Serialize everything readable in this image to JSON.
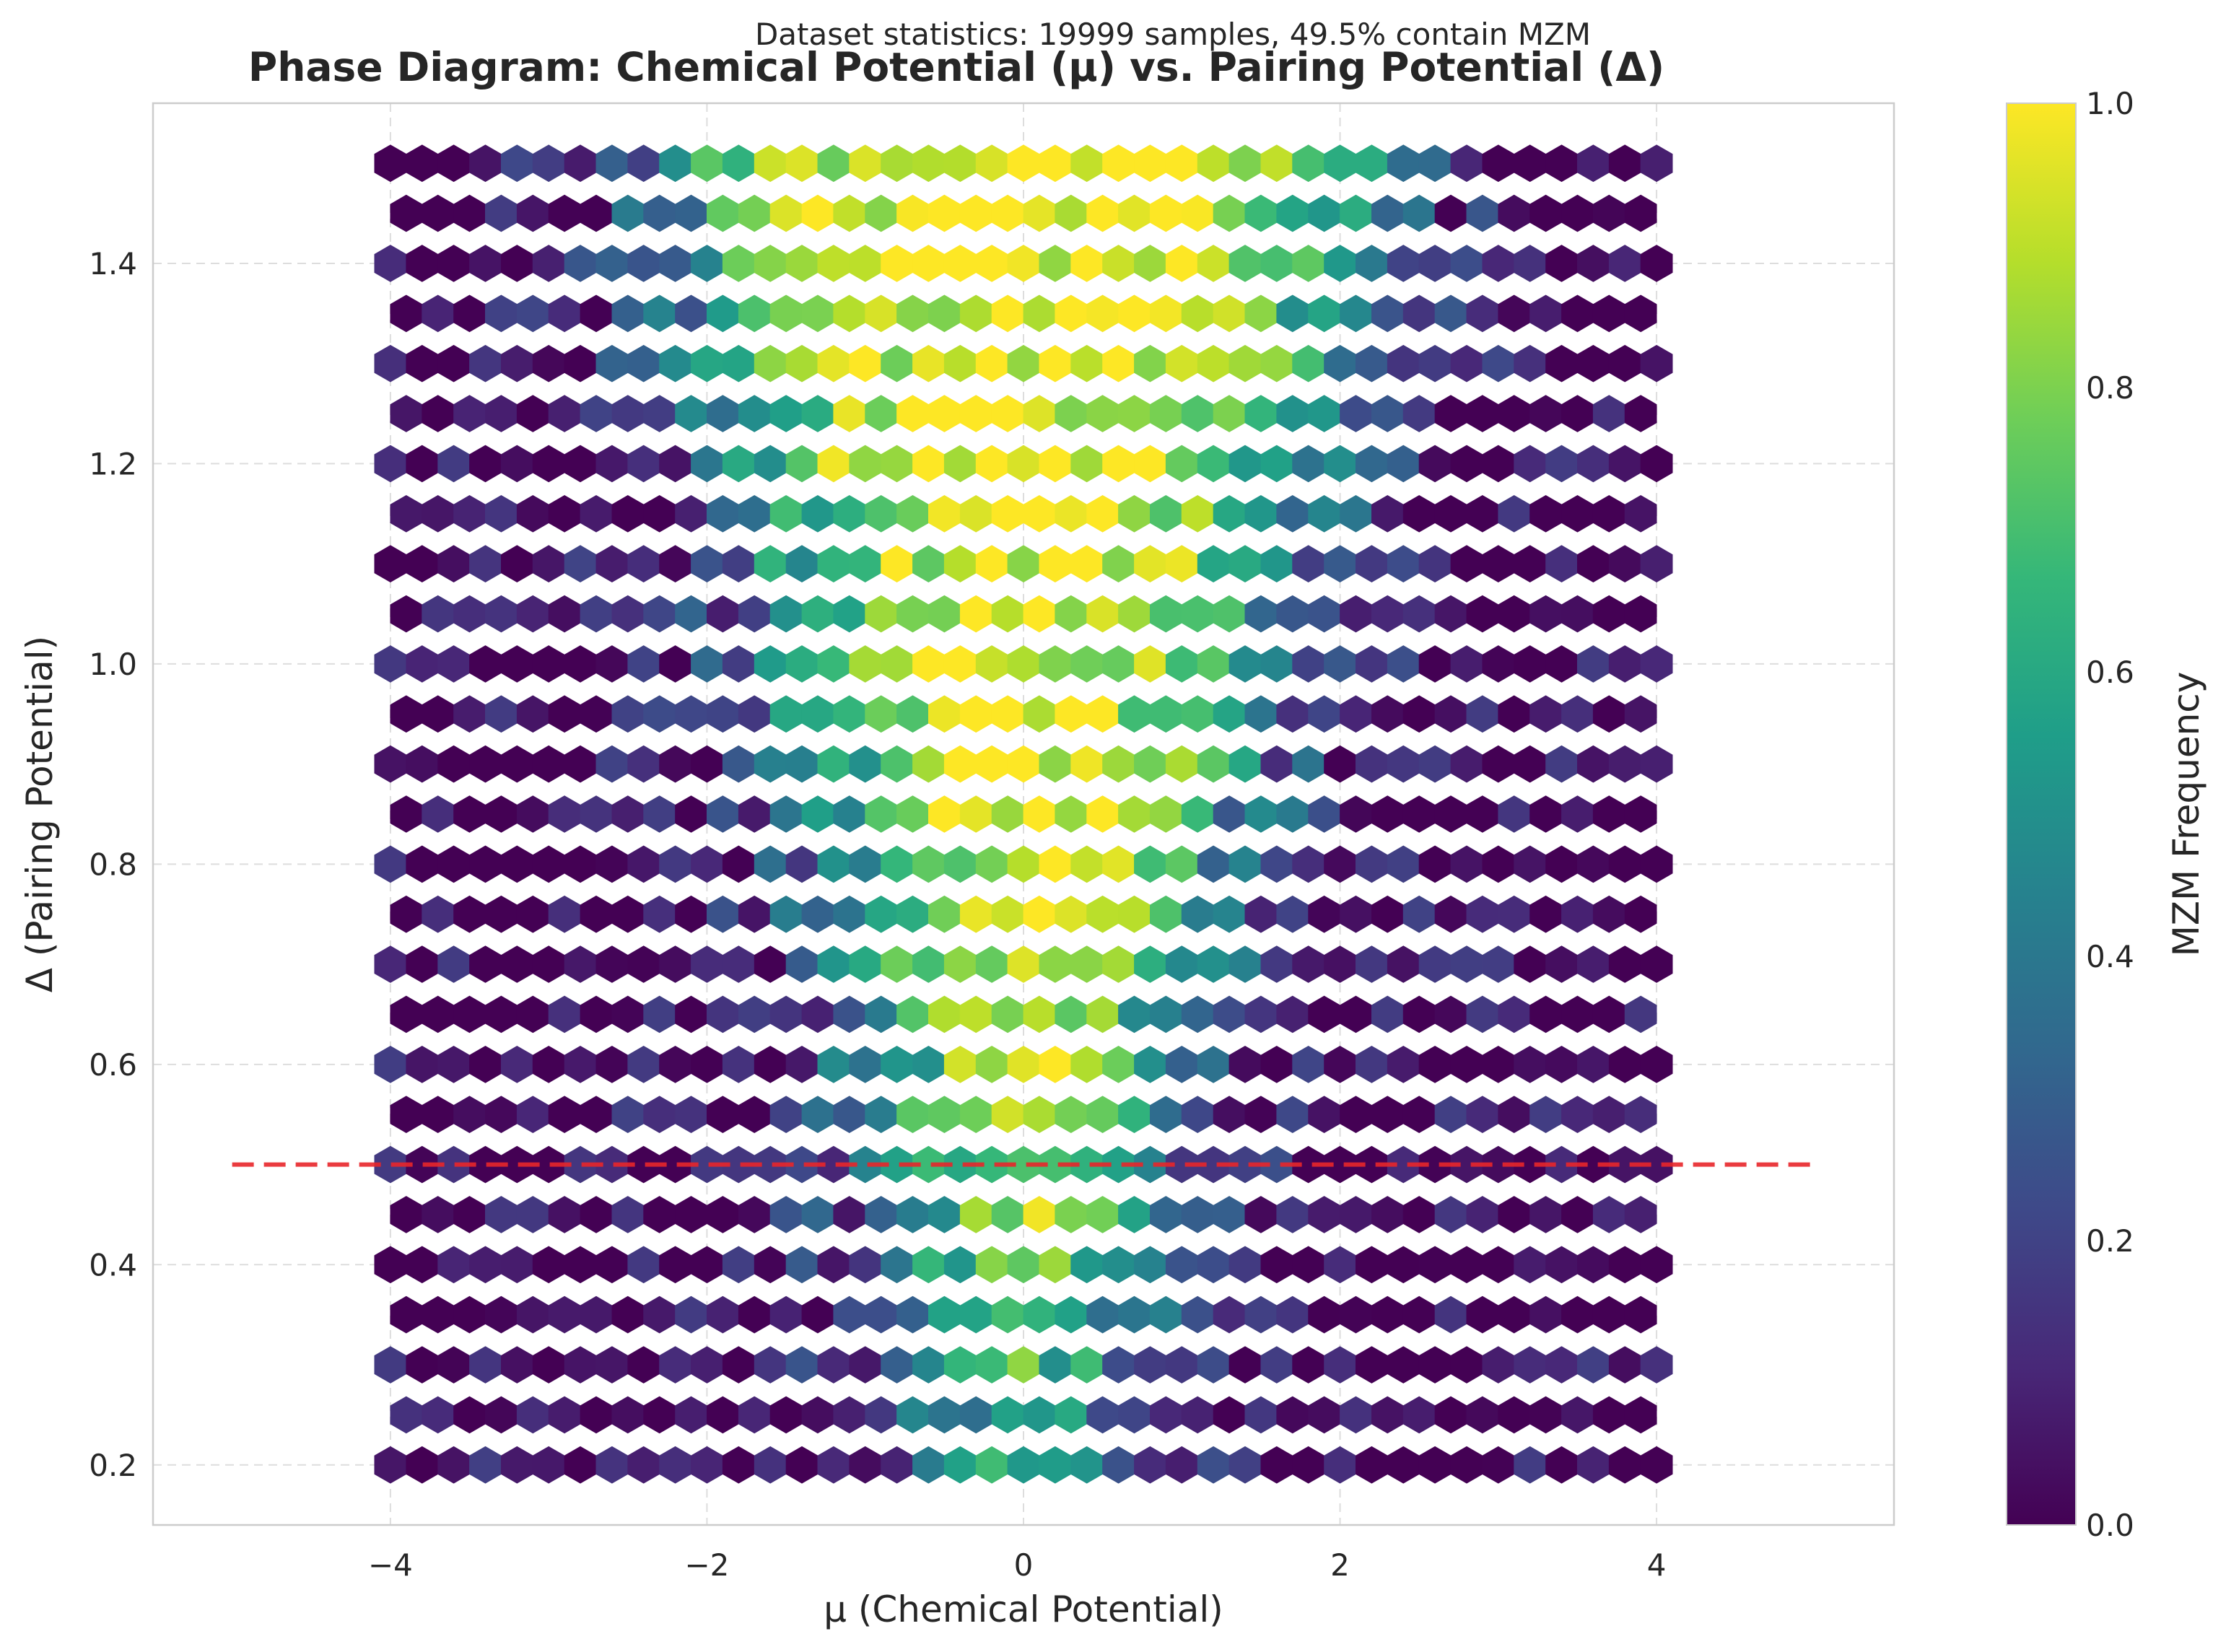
{
  "chart_data": {
    "type": "heatmap",
    "subtype": "hexbin",
    "suptitle": "Dataset statistics: 19999 samples, 49.5% contain MZM",
    "title": "Phase Diagram: Chemical Potential (μ) vs. Pairing Potential (Δ)",
    "xlabel": "μ (Chemical Potential)",
    "ylabel": "Δ (Pairing Potential)",
    "xlim": [
      -5.5,
      5.5
    ],
    "ylim": [
      0.14,
      1.56
    ],
    "xticks": [
      -4,
      -2,
      0,
      2,
      4
    ],
    "xtick_labels": [
      "−4",
      "−2",
      "0",
      "2",
      "4"
    ],
    "yticks": [
      0.2,
      0.4,
      0.6,
      0.8,
      1.0,
      1.2,
      1.4
    ],
    "ytick_labels": [
      "0.2",
      "0.4",
      "0.6",
      "0.8",
      "1.0",
      "1.2",
      "1.4"
    ],
    "grid": true,
    "colormap": "viridis",
    "colorbar": {
      "label": "MZM Frequency",
      "range": [
        0.0,
        1.0
      ],
      "ticks": [
        0.0,
        0.2,
        0.4,
        0.6,
        0.8,
        1.0
      ],
      "tick_labels": [
        "0.0",
        "0.2",
        "0.4",
        "0.6",
        "0.8",
        "1.0"
      ]
    },
    "data_extent": {
      "mu": [
        -4,
        4
      ],
      "delta": [
        0.2,
        1.5
      ]
    },
    "hexbin_gridsize": 40,
    "phase_structure": "MZM frequency ≈ 1.0 where |μ| < 2Δ (central yellow band widening with Δ), falling to ≈ 0 near |μ| ≈ 4",
    "reference_line": {
      "y": 0.5,
      "x_range": [
        -5,
        5
      ],
      "style": "dashed",
      "color": "#e8262a"
    }
  },
  "colors": {
    "viridis": [
      "#440154",
      "#482878",
      "#3e4989",
      "#31688e",
      "#26828e",
      "#1f9e89",
      "#35b779",
      "#6ece58",
      "#b5de2b",
      "#fde725"
    ],
    "reference_line": "#e8262a",
    "grid": "#dddddd",
    "spine": "#cccccc"
  }
}
